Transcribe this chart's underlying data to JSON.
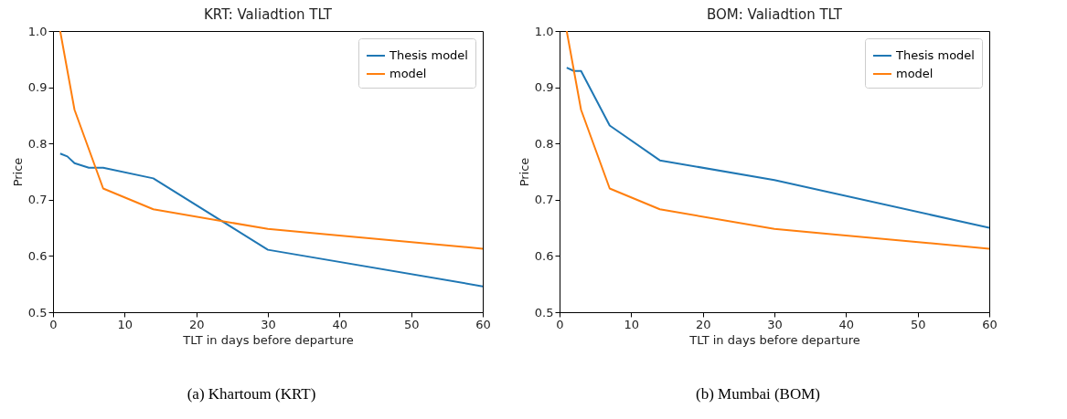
{
  "chart_data": [
    {
      "type": "line",
      "title": "KRT: Valiadtion TLT",
      "xlabel": "TLT in days before departure",
      "ylabel": "Price",
      "annotations": [
        "(a) Khartoum (KRT)"
      ],
      "xlim": [
        0,
        60
      ],
      "xticks": [
        0,
        10,
        20,
        30,
        40,
        50,
        60
      ],
      "ylim": [
        0.5,
        1.0
      ],
      "yticks": [
        {
          "value": 0.5,
          "label": "0.5"
        },
        {
          "value": 0.6,
          "label": "0.6"
        },
        {
          "value": 0.7,
          "label": "0.7"
        },
        {
          "value": 0.8,
          "label": "0.8"
        },
        {
          "value": 0.9,
          "label": "0.9"
        },
        {
          "value": 1.0,
          "label": "1.0"
        }
      ],
      "legend": "top right",
      "grid": false,
      "series": [
        {
          "name": "Thesis model",
          "color": "#1f77b4",
          "x": [
            1,
            2,
            3,
            5,
            7,
            14,
            30,
            60
          ],
          "values": [
            0.782,
            0.777,
            0.765,
            0.757,
            0.757,
            0.738,
            0.611,
            0.546
          ]
        },
        {
          "name": "model",
          "color": "#ff7f0e",
          "x": [
            1,
            3,
            7,
            14,
            30,
            60
          ],
          "values": [
            1.0,
            0.86,
            0.72,
            0.683,
            0.648,
            0.613
          ]
        }
      ]
    },
    {
      "type": "line",
      "title": "BOM: Valiadtion TLT",
      "xlabel": "TLT in days before departure",
      "ylabel": "Price",
      "annotations": [
        "(b) Mumbai (BOM)"
      ],
      "xlim": [
        0,
        60
      ],
      "xticks": [
        0,
        10,
        20,
        30,
        40,
        50,
        60
      ],
      "ylim": [
        0.5,
        1.0
      ],
      "yticks": [
        {
          "value": 0.5,
          "label": "0.5"
        },
        {
          "value": 0.6,
          "label": "0.6"
        },
        {
          "value": 0.7,
          "label": "0.7"
        },
        {
          "value": 0.8,
          "label": "0.8"
        },
        {
          "value": 0.9,
          "label": "0.9"
        },
        {
          "value": 1.0,
          "label": "1.0"
        }
      ],
      "legend": "top right",
      "grid": false,
      "series": [
        {
          "name": "Thesis model",
          "color": "#1f77b4",
          "x": [
            1,
            2,
            3,
            7,
            14,
            30,
            60
          ],
          "values": [
            0.935,
            0.929,
            0.929,
            0.832,
            0.77,
            0.735,
            0.65
          ]
        },
        {
          "name": "model",
          "color": "#ff7f0e",
          "x": [
            1,
            3,
            7,
            14,
            30,
            60
          ],
          "values": [
            1.0,
            0.86,
            0.72,
            0.683,
            0.648,
            0.613
          ]
        }
      ]
    }
  ]
}
